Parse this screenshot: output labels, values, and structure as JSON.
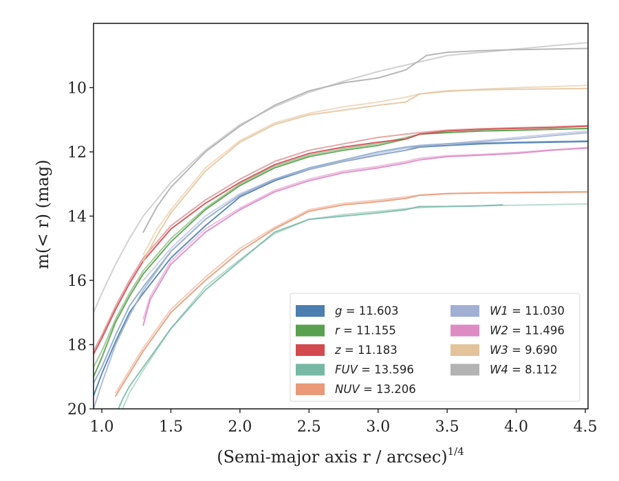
{
  "chart_data": {
    "type": "line",
    "xlabel_main": "(Semi-major axis r / arcsec)",
    "xlabel_sup": "1/4",
    "ylabel": "m(< r) (mag)",
    "xlim": [
      0.94,
      4.52
    ],
    "ylim": [
      20.0,
      8.0
    ],
    "y_inverted": true,
    "grid": false,
    "legend_position": "lower-right",
    "legend_columns": 2,
    "x_ticks": [
      {
        "value": 1.0,
        "label": "1.0"
      },
      {
        "value": 1.5,
        "label": "1.5"
      },
      {
        "value": 2.0,
        "label": "2.0"
      },
      {
        "value": 2.5,
        "label": "2.5"
      },
      {
        "value": 3.0,
        "label": "3.0"
      },
      {
        "value": 3.5,
        "label": "3.5"
      },
      {
        "value": 4.0,
        "label": "4.0"
      },
      {
        "value": 4.5,
        "label": "4.5"
      }
    ],
    "y_ticks": [
      {
        "value": 10,
        "label": "10"
      },
      {
        "value": 12,
        "label": "12"
      },
      {
        "value": 14,
        "label": "14"
      },
      {
        "value": 16,
        "label": "16"
      },
      {
        "value": 18,
        "label": "18"
      },
      {
        "value": 20,
        "label": "20"
      }
    ],
    "series": [
      {
        "band": "g",
        "value": "11.603",
        "color": "#4c7eb0",
        "curves": [
          {
            "opacity": 0.9,
            "width": 2.0,
            "x": [
              0.94,
              1.0,
              1.1,
              1.2,
              1.3,
              1.5,
              1.75,
              2.0,
              2.25,
              2.5,
              2.75,
              3.0,
              3.2,
              3.3,
              3.5,
              3.75,
              4.0,
              4.25,
              4.52
            ],
            "y": [
              19.6,
              18.9,
              17.9,
              17.0,
              16.4,
              15.3,
              14.3,
              13.4,
              12.9,
              12.55,
              12.3,
              12.1,
              11.95,
              11.85,
              11.8,
              11.75,
              11.72,
              11.7,
              11.68
            ]
          },
          {
            "opacity": 0.6,
            "width": 2.0,
            "x": [
              0.94,
              1.0,
              1.1,
              1.2,
              1.3,
              1.5,
              1.75,
              2.0,
              2.25,
              2.5,
              2.75,
              3.0,
              3.2,
              3.3,
              3.5,
              3.75,
              4.0,
              4.25,
              4.52
            ],
            "y": [
              19.2,
              18.7,
              17.7,
              16.8,
              16.2,
              15.1,
              14.1,
              13.35,
              12.85,
              12.5,
              12.25,
              12.0,
              11.85,
              11.8,
              11.75,
              11.72,
              11.7,
              11.68,
              11.66
            ]
          }
        ]
      },
      {
        "band": "r",
        "value": "11.155",
        "color": "#59a14f",
        "curves": [
          {
            "opacity": 0.9,
            "width": 2.0,
            "x": [
              0.94,
              1.0,
              1.1,
              1.2,
              1.3,
              1.5,
              1.75,
              2.0,
              2.25,
              2.5,
              2.75,
              3.0,
              3.2,
              3.3,
              3.5,
              3.75,
              4.0,
              4.25,
              4.52
            ],
            "y": [
              19.0,
              18.4,
              17.3,
              16.5,
              15.8,
              14.8,
              13.8,
              13.05,
              12.5,
              12.15,
              11.95,
              11.8,
              11.6,
              11.45,
              11.4,
              11.35,
              11.33,
              11.3,
              11.27
            ]
          },
          {
            "opacity": 0.55,
            "width": 2.0,
            "x": [
              0.94,
              1.0,
              1.1,
              1.2,
              1.3,
              1.5,
              1.75,
              2.0,
              2.25,
              2.5,
              2.75,
              3.0,
              3.2,
              3.3,
              3.5,
              3.75,
              4.0,
              4.25,
              4.52
            ],
            "y": [
              18.7,
              18.2,
              17.2,
              16.4,
              15.7,
              14.7,
              13.75,
              13.0,
              12.45,
              12.1,
              11.9,
              11.75,
              11.55,
              11.45,
              11.4,
              11.35,
              11.32,
              11.3,
              11.28
            ]
          }
        ]
      },
      {
        "band": "z",
        "value": "11.183",
        "color": "#d24a4e",
        "curves": [
          {
            "opacity": 0.9,
            "width": 2.0,
            "x": [
              0.94,
              1.0,
              1.1,
              1.2,
              1.3,
              1.5,
              1.75,
              2.0,
              2.25,
              2.5,
              2.75,
              3.0,
              3.2,
              3.3,
              3.5,
              3.75,
              4.0,
              4.25,
              4.52
            ],
            "y": [
              18.3,
              17.8,
              16.9,
              16.1,
              15.4,
              14.4,
              13.6,
              12.95,
              12.4,
              12.05,
              11.85,
              11.7,
              11.6,
              11.45,
              11.35,
              11.3,
              11.27,
              11.25,
              11.2
            ]
          },
          {
            "opacity": 0.5,
            "width": 2.0,
            "x": [
              0.94,
              1.0,
              1.1,
              1.2,
              1.3,
              1.5,
              1.75,
              2.0,
              2.25,
              2.5,
              2.75,
              3.0,
              3.2,
              3.3,
              3.5,
              3.75,
              4.0,
              4.25,
              4.52
            ],
            "y": [
              18.2,
              17.7,
              16.8,
              16.0,
              15.3,
              14.3,
              13.5,
              12.85,
              12.3,
              11.95,
              11.75,
              11.55,
              11.45,
              11.4,
              11.32,
              11.28,
              11.25,
              11.22,
              11.18
            ]
          }
        ]
      },
      {
        "band": "FUV",
        "value": "13.596",
        "color": "#76b8a4",
        "curves": [
          {
            "opacity": 0.85,
            "width": 2.0,
            "x": [
              1.12,
              1.15,
              1.2,
              1.3,
              1.5,
              1.75,
              2.0,
              2.25,
              2.5,
              2.75,
              3.0,
              3.2,
              3.3,
              3.5,
              3.75,
              3.9
            ],
            "y": [
              20.0,
              19.7,
              19.3,
              18.7,
              17.5,
              16.3,
              15.4,
              14.5,
              14.1,
              14.0,
              13.9,
              13.8,
              13.7,
              13.7,
              13.68,
              13.65
            ]
          },
          {
            "opacity": 0.5,
            "width": 2.0,
            "x": [
              1.15,
              1.2,
              1.3,
              1.5,
              1.75,
              2.0,
              2.25,
              2.5,
              2.75,
              3.0,
              3.25,
              3.5,
              3.75,
              4.0,
              4.25,
              4.52
            ],
            "y": [
              20.0,
              19.5,
              18.8,
              17.5,
              16.2,
              15.35,
              14.55,
              14.1,
              13.95,
              13.85,
              13.75,
              13.7,
              13.68,
              13.66,
              13.64,
              13.62
            ]
          }
        ]
      },
      {
        "band": "NUV",
        "value": "13.206",
        "color": "#ea9a78",
        "curves": [
          {
            "opacity": 0.9,
            "width": 2.0,
            "x": [
              1.1,
              1.2,
              1.3,
              1.5,
              1.75,
              2.0,
              2.25,
              2.5,
              2.75,
              3.0,
              3.2,
              3.3,
              3.5,
              3.75,
              4.0,
              4.25,
              4.52
            ],
            "y": [
              19.6,
              18.9,
              18.2,
              17.0,
              16.0,
              15.1,
              14.4,
              13.85,
              13.65,
              13.55,
              13.45,
              13.35,
              13.3,
              13.28,
              13.27,
              13.26,
              13.25
            ]
          },
          {
            "opacity": 0.5,
            "width": 2.0,
            "x": [
              1.1,
              1.2,
              1.3,
              1.5,
              1.75,
              2.0,
              2.25,
              2.5,
              2.75,
              3.0,
              3.2,
              3.3,
              3.5,
              3.75,
              4.0,
              4.25,
              4.52
            ],
            "y": [
              19.5,
              18.8,
              18.1,
              16.9,
              15.9,
              15.0,
              14.35,
              13.8,
              13.6,
              13.5,
              13.4,
              13.35,
              13.3,
              13.28,
              13.26,
              13.25,
              13.24
            ]
          }
        ]
      },
      {
        "band": "W1",
        "value": "11.030",
        "color": "#a1afd2",
        "curves": [
          {
            "opacity": 0.85,
            "width": 2.0,
            "x": [
              0.94,
              1.0,
              1.1,
              1.2,
              1.3,
              1.5,
              1.75,
              2.0,
              2.25,
              2.5,
              2.75,
              3.0,
              3.2,
              3.3,
              3.5,
              3.75,
              4.0,
              4.25,
              4.52
            ],
            "y": [
              20.0,
              19.2,
              18.0,
              17.1,
              16.3,
              15.1,
              14.1,
              13.35,
              12.85,
              12.55,
              12.3,
              12.1,
              11.95,
              11.8,
              11.75,
              11.68,
              11.6,
              11.5,
              11.4
            ]
          },
          {
            "opacity": 0.55,
            "width": 2.0,
            "x": [
              1.3,
              1.4,
              1.5,
              1.75,
              2.0,
              2.25,
              2.5,
              2.75,
              3.0,
              3.25,
              3.5,
              3.75,
              4.0,
              4.25,
              4.52
            ],
            "y": [
              16.0,
              15.5,
              15.0,
              14.0,
              13.3,
              12.85,
              12.55,
              12.3,
              12.05,
              11.85,
              11.75,
              11.65,
              11.55,
              11.45,
              11.35
            ]
          }
        ]
      },
      {
        "band": "W2",
        "value": "11.496",
        "color": "#de8bc4",
        "curves": [
          {
            "opacity": 0.9,
            "width": 2.0,
            "x": [
              1.3,
              1.35,
              1.5,
              1.75,
              2.0,
              2.25,
              2.5,
              2.75,
              3.0,
              3.2,
              3.3,
              3.5,
              3.75,
              4.0,
              4.25,
              4.52
            ],
            "y": [
              17.4,
              16.6,
              15.5,
              14.5,
              13.8,
              13.25,
              12.9,
              12.65,
              12.5,
              12.35,
              12.25,
              12.15,
              12.1,
              12.05,
              11.95,
              11.88
            ]
          },
          {
            "opacity": 0.55,
            "width": 2.0,
            "x": [
              1.3,
              1.35,
              1.5,
              1.75,
              2.0,
              2.25,
              2.5,
              2.75,
              3.0,
              3.2,
              3.3,
              3.5,
              3.75,
              4.0,
              4.25,
              4.52
            ],
            "y": [
              17.2,
              16.5,
              15.4,
              14.4,
              13.75,
              13.2,
              12.85,
              12.6,
              12.45,
              12.3,
              12.2,
              12.12,
              12.08,
              12.02,
              11.94,
              11.86
            ]
          }
        ]
      },
      {
        "band": "W3",
        "value": "9.690",
        "color": "#e3c39a",
        "curves": [
          {
            "opacity": 0.85,
            "width": 2.0,
            "x": [
              1.3,
              1.4,
              1.5,
              1.75,
              2.0,
              2.25,
              2.5,
              2.75,
              3.0,
              3.2,
              3.3,
              3.5,
              3.75,
              4.0,
              4.25,
              4.52
            ],
            "y": [
              15.4,
              14.6,
              13.9,
              12.6,
              11.7,
              11.15,
              10.85,
              10.7,
              10.55,
              10.45,
              10.2,
              10.1,
              10.07,
              10.05,
              10.04,
              10.03
            ]
          },
          {
            "opacity": 0.6,
            "width": 2.0,
            "x": [
              1.3,
              1.4,
              1.5,
              1.75,
              2.0,
              2.25,
              2.5,
              2.75,
              3.0,
              3.2,
              3.3,
              3.5,
              3.75,
              4.0,
              4.25,
              4.52
            ],
            "y": [
              15.2,
              14.4,
              13.8,
              12.5,
              11.65,
              11.1,
              10.8,
              10.6,
              10.45,
              10.3,
              10.2,
              10.12,
              10.05,
              10.0,
              9.97,
              9.93
            ]
          }
        ]
      },
      {
        "band": "W4",
        "value": "8.112",
        "color": "#b3b3b3",
        "curves": [
          {
            "opacity": 0.95,
            "width": 2.0,
            "x": [
              1.3,
              1.4,
              1.5,
              1.75,
              2.0,
              2.25,
              2.5,
              2.75,
              3.0,
              3.2,
              3.3,
              3.35,
              3.5,
              3.75,
              4.0,
              4.25,
              4.52
            ],
            "y": [
              14.5,
              13.7,
              13.1,
              12.0,
              11.2,
              10.55,
              10.1,
              9.85,
              9.7,
              9.45,
              9.15,
              9.0,
              8.9,
              8.85,
              8.82,
              8.8,
              8.78
            ]
          },
          {
            "opacity": 0.6,
            "width": 2.0,
            "x": [
              0.94,
              1.0,
              1.1,
              1.2,
              1.3,
              1.5,
              1.75,
              2.0,
              2.25,
              2.5,
              2.75,
              3.0,
              3.25,
              3.5,
              3.75,
              4.0,
              4.25,
              4.52
            ],
            "y": [
              17.0,
              16.4,
              15.5,
              14.7,
              14.0,
              12.95,
              11.95,
              11.15,
              10.6,
              10.15,
              9.8,
              9.5,
              9.25,
              9.0,
              8.9,
              8.8,
              8.7,
              8.6
            ]
          }
        ]
      }
    ]
  }
}
